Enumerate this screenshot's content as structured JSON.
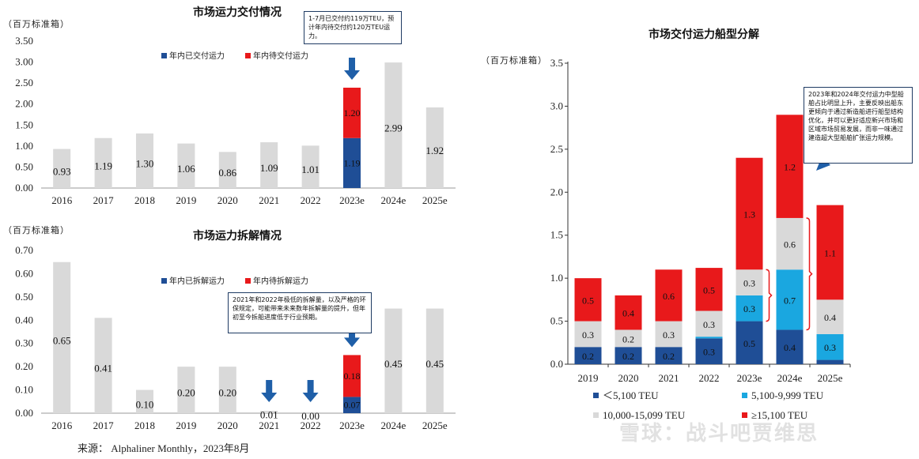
{
  "colors": {
    "gray": "#d9d9d9",
    "red": "#e8191b",
    "navy": "#1f5fa8",
    "darkblue": "#1f4e96",
    "lightblue": "#1aa7e0",
    "arrow": "#1f5fa8",
    "bracket": "#e8191b"
  },
  "chart_data": [
    {
      "type": "bar",
      "title": "市场运力交付情况",
      "unit": "（百万标准箱）",
      "categories": [
        "2016",
        "2017",
        "2018",
        "2019",
        "2020",
        "2021",
        "2022",
        "2023e",
        "2024e",
        "2025e"
      ],
      "values": [
        0.93,
        1.19,
        1.3,
        1.06,
        0.86,
        1.09,
        1.01,
        null,
        2.99,
        1.92
      ],
      "value_labels": [
        "0.93",
        "1.19",
        "1.30",
        "1.06",
        "0.86",
        "1.09",
        "1.01",
        "",
        "2.99",
        "1.92"
      ],
      "stacked_2023e": {
        "delivered": 1.19,
        "pending": 1.2,
        "delivered_label": "1.19",
        "pending_label": "1.20"
      },
      "yticks": [
        "0.00",
        "0.50",
        "1.00",
        "1.50",
        "2.00",
        "2.50",
        "3.00",
        "3.50"
      ],
      "ylim": [
        0,
        3.5
      ],
      "legend": [
        "年内已交付运力",
        "年内待交付运力"
      ],
      "legend_position": "top",
      "annotation": "1-7月已交付约119万TEU，预计年内待交付约120万TEU运力。"
    },
    {
      "type": "bar",
      "title": "市场运力拆解情况",
      "unit": "（百万标准箱）",
      "categories": [
        "2016",
        "2017",
        "2018",
        "2019",
        "2020",
        "2021",
        "2022",
        "2023e",
        "2024e",
        "2025e"
      ],
      "values": [
        0.65,
        0.41,
        0.1,
        0.2,
        0.2,
        0.01,
        0.0,
        null,
        0.45,
        0.45
      ],
      "value_labels": [
        "0.65",
        "0.41",
        "0.10",
        "0.20",
        "0.20",
        "0.01",
        "0.00",
        "",
        "0.45",
        "0.45"
      ],
      "stacked_2023e": {
        "delivered": 0.07,
        "pending": 0.18,
        "delivered_label": "0.07",
        "pending_label": "0.18"
      },
      "yticks": [
        "0.00",
        "0.10",
        "0.20",
        "0.30",
        "0.40",
        "0.50",
        "0.60",
        "0.70"
      ],
      "ylim": [
        0,
        0.7
      ],
      "legend": [
        "年内已拆解运力",
        "年内待拆解运力"
      ],
      "legend_position": "top",
      "annotation": "2021年和2022年极低的拆解量，以及严格的环保规定，可能带来未来数年拆解量的提升，但年初至今拆船进度低于行业预期。"
    },
    {
      "type": "bar",
      "title": "市场交付运力船型分解",
      "unit": "（百万标准箱）",
      "categories": [
        "2019",
        "2020",
        "2021",
        "2022",
        "2023e",
        "2024e",
        "2025e"
      ],
      "series": [
        {
          "name": "＜5,100 TEU",
          "values": [
            0.2,
            0.2,
            0.2,
            0.3,
            0.5,
            0.4,
            0.05
          ],
          "labels": [
            "0.2",
            "0.2",
            "0.2",
            "0.3",
            "0.5",
            "0.4",
            ""
          ]
        },
        {
          "name": "5,100-9,999 TEU",
          "values": [
            0.0,
            0.0,
            0.0,
            0.02,
            0.3,
            0.7,
            0.3
          ],
          "labels": [
            "",
            "",
            "",
            "",
            "0.3",
            "0.7",
            "0.3"
          ]
        },
        {
          "name": "10,000-15,099 TEU",
          "values": [
            0.3,
            0.2,
            0.3,
            0.3,
            0.3,
            0.6,
            0.4
          ],
          "labels": [
            "0.3",
            "0.2",
            "0.3",
            "0.3",
            "0.3",
            "0.6",
            "0.4"
          ]
        },
        {
          "name": "≥15,100 TEU",
          "values": [
            0.5,
            0.4,
            0.6,
            0.5,
            1.3,
            1.2,
            1.1
          ],
          "labels": [
            "0.5",
            "0.4",
            "0.6",
            "0.5",
            "1.3",
            "1.2",
            "1.1"
          ]
        }
      ],
      "yticks": [
        "0.0",
        "0.5",
        "1.0",
        "1.5",
        "2.0",
        "2.5",
        "3.0",
        "3.5"
      ],
      "ylim": [
        0,
        3.5
      ],
      "legend_position": "bottom",
      "annotation": "2023年和2024年交付运力中型船舶占比明显上升，主要反映出船东更倾向于通过新造船进行船型结构优化，并可以更好适应新兴市场和区域市场贸易发展，而非一味通过建造超大型船舶扩张运力规模。"
    }
  ],
  "source": "来源：    Alphaliner Monthly，2023年8月",
  "watermark": "雪球：战斗吧贾维思"
}
